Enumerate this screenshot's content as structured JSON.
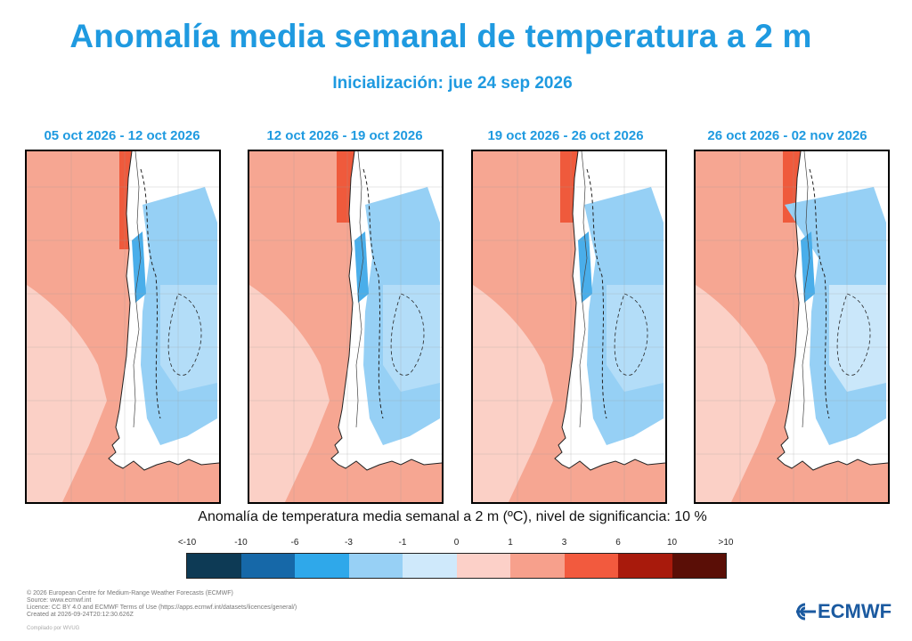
{
  "title": "Anomalía media semanal de temperatura a 2 m",
  "subtitle": "Inicialización: jue 24 sep 2026",
  "panels": [
    {
      "period": "05 oct 2026 - 12 oct 2026"
    },
    {
      "period": "12 oct 2026 - 19 oct 2026"
    },
    {
      "period": "19 oct 2026 - 26 oct 2026"
    },
    {
      "period": "26 oct 2026 - 02 nov 2026"
    }
  ],
  "legend": {
    "title": "Anomalía de temperatura media semanal a 2 m (ºC), nivel de significancia: 10 %",
    "ticks": [
      "<-10",
      "-10",
      "-6",
      "-3",
      "-1",
      "0",
      "1",
      "3",
      "6",
      "10",
      ">10"
    ],
    "colors": [
      "#0d3a55",
      "#1668a8",
      "#2fa8ea",
      "#97d0f5",
      "#cfe9fb",
      "#fcd0c8",
      "#f7a08c",
      "#f25a3e",
      "#a81a0c",
      "#5a0e06"
    ]
  },
  "map_colors": {
    "ocean_warm": "#f6a692",
    "ocean_light": "#fbd0c6",
    "hot": "#ef5a3c",
    "cold_mid": "#96d0f5",
    "cold_deep": "#4aaeea",
    "cold_light": "#cfe9fb",
    "neutral": "#ffffff"
  },
  "footer": {
    "lines": [
      "© 2026 European Centre for Medium-Range Weather Forecasts (ECMWF)",
      "Source: www.ecmwf.int",
      "Licence: CC BY 4.0 and ECMWF Terms of Use (https://apps.ecmwf.int/datasets/licences/general/)",
      "Created at 2026-09-24T20:12:30.626Z"
    ],
    "credit": "Compilado por WVUG"
  },
  "logo": {
    "text": "ECMWF",
    "icon": "ecmwf-logo-icon"
  }
}
